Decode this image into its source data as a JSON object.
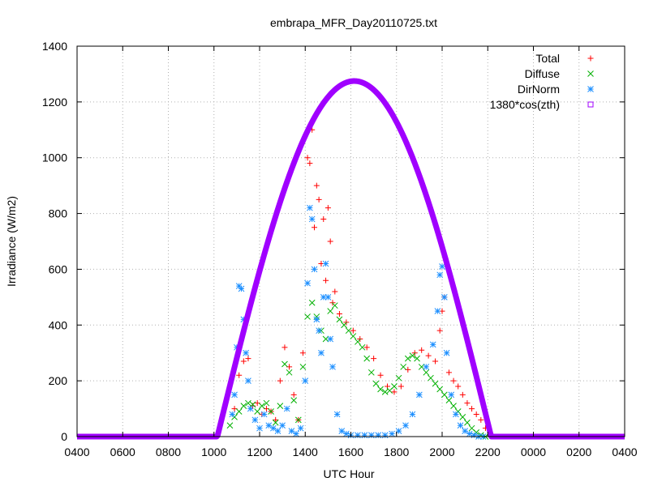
{
  "chart_data": {
    "type": "scatter",
    "title": "embrapa_MFR_Day20110725.txt",
    "xlabel": "UTC Hour",
    "ylabel": "Irradiance (W/m2)",
    "xlim": [
      4,
      28
    ],
    "ylim": [
      0,
      1400
    ],
    "x_ticks": [
      4,
      6,
      8,
      10,
      12,
      14,
      16,
      18,
      20,
      22,
      24,
      26,
      28
    ],
    "x_tick_labels": [
      "0400",
      "0600",
      "0800",
      "1000",
      "1200",
      "1400",
      "1600",
      "1800",
      "2000",
      "2200",
      "0000",
      "0200",
      "0400"
    ],
    "y_ticks": [
      0,
      200,
      400,
      600,
      800,
      1000,
      1200,
      1400
    ],
    "y_tick_labels": [
      "0",
      "200",
      "400",
      "600",
      "800",
      "1000",
      "1200",
      "1400"
    ],
    "grid": true,
    "legend_position": "top-right",
    "series": [
      {
        "name": "Total",
        "color": "#ff0000",
        "marker": "plus",
        "x": [
          10.9,
          11.1,
          11.3,
          11.5,
          11.7,
          11.9,
          12.1,
          12.3,
          12.5,
          12.7,
          12.9,
          13.1,
          13.3,
          13.5,
          13.7,
          13.9,
          14.1,
          14.2,
          14.3,
          14.4,
          14.5,
          14.6,
          14.7,
          14.8,
          14.9,
          15.0,
          15.1,
          15.2,
          15.3,
          15.5,
          15.8,
          16.1,
          16.4,
          16.7,
          17.0,
          17.3,
          17.6,
          17.9,
          18.2,
          18.5,
          18.8,
          19.1,
          19.4,
          19.7,
          19.9,
          20.0,
          20.1,
          20.3,
          20.5,
          20.7,
          20.9,
          21.1,
          21.3,
          21.5,
          21.7,
          21.9
        ],
        "y": [
          100,
          220,
          270,
          280,
          110,
          120,
          80,
          100,
          90,
          60,
          200,
          320,
          250,
          150,
          60,
          300,
          1000,
          980,
          1100,
          750,
          900,
          850,
          620,
          780,
          560,
          820,
          700,
          480,
          520,
          440,
          410,
          380,
          350,
          320,
          280,
          220,
          180,
          160,
          180,
          240,
          300,
          310,
          290,
          270,
          380,
          450,
          500,
          230,
          200,
          180,
          150,
          120,
          100,
          80,
          60,
          30
        ]
      },
      {
        "name": "Diffuse",
        "color": "#00b000",
        "marker": "x",
        "x": [
          10.7,
          10.9,
          11.1,
          11.3,
          11.5,
          11.7,
          11.9,
          12.1,
          12.3,
          12.5,
          12.7,
          12.9,
          13.1,
          13.3,
          13.5,
          13.7,
          13.9,
          14.1,
          14.3,
          14.5,
          14.7,
          14.9,
          15.1,
          15.3,
          15.5,
          15.7,
          15.9,
          16.1,
          16.3,
          16.5,
          16.7,
          16.9,
          17.1,
          17.3,
          17.5,
          17.7,
          17.9,
          18.1,
          18.3,
          18.5,
          18.7,
          18.9,
          19.1,
          19.3,
          19.5,
          19.7,
          19.9,
          20.1,
          20.3,
          20.5,
          20.7,
          20.9,
          21.1,
          21.3,
          21.5,
          21.7,
          21.9
        ],
        "y": [
          40,
          70,
          90,
          110,
          120,
          115,
          90,
          110,
          120,
          90,
          50,
          110,
          260,
          230,
          130,
          60,
          250,
          430,
          480,
          430,
          380,
          350,
          450,
          470,
          420,
          400,
          380,
          360,
          340,
          320,
          280,
          230,
          190,
          170,
          160,
          165,
          180,
          210,
          250,
          280,
          290,
          280,
          250,
          230,
          210,
          190,
          170,
          150,
          130,
          110,
          90,
          70,
          50,
          30,
          15,
          5,
          0
        ]
      },
      {
        "name": "DirNorm",
        "color": "#1e90ff",
        "marker": "asterisk",
        "x": [
          10.8,
          10.9,
          11.0,
          11.1,
          11.2,
          11.3,
          11.4,
          11.5,
          11.6,
          11.8,
          12.0,
          12.2,
          12.4,
          12.6,
          12.8,
          13.0,
          13.2,
          13.4,
          13.6,
          13.8,
          14.0,
          14.1,
          14.2,
          14.3,
          14.4,
          14.5,
          14.6,
          14.7,
          14.8,
          14.9,
          15.0,
          15.1,
          15.2,
          15.4,
          15.6,
          15.8,
          16.0,
          16.3,
          16.6,
          16.9,
          17.2,
          17.5,
          17.8,
          18.1,
          18.4,
          18.7,
          19.0,
          19.3,
          19.6,
          19.8,
          19.9,
          20.0,
          20.1,
          20.2,
          20.4,
          20.6,
          20.8,
          21.0,
          21.2,
          21.4,
          21.6,
          21.8
        ],
        "y": [
          80,
          150,
          320,
          540,
          530,
          420,
          300,
          200,
          100,
          60,
          30,
          80,
          40,
          30,
          20,
          40,
          100,
          20,
          10,
          30,
          200,
          550,
          820,
          780,
          600,
          420,
          380,
          300,
          500,
          620,
          500,
          350,
          250,
          80,
          20,
          10,
          5,
          5,
          5,
          5,
          5,
          5,
          10,
          20,
          40,
          80,
          150,
          250,
          330,
          450,
          580,
          610,
          500,
          300,
          150,
          80,
          40,
          20,
          10,
          5,
          0,
          0
        ]
      },
      {
        "name": "1380*cos(zth)",
        "color": "#a000ff",
        "marker": "square",
        "curve": "cos",
        "x_start": 10.15,
        "x_end": 22.15,
        "peak_x": 16.15,
        "peak_y": 1275,
        "baseline": 0
      }
    ]
  }
}
